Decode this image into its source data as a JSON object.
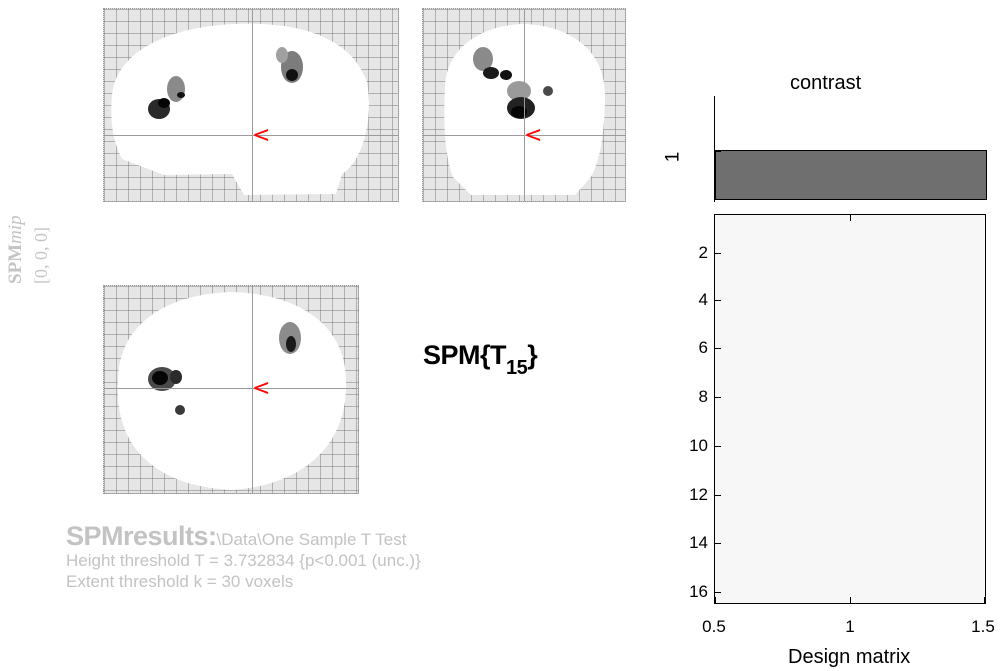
{
  "mip": {
    "label_main": "SPM",
    "label_italic": "mip",
    "coords": "[0, 0, 0]",
    "arrow_glyph": "<",
    "arrow_color": "#ff0000",
    "blob_color": "#111111",
    "grid_color": "#6e6e6e"
  },
  "stat": {
    "prefix": "SPM{T",
    "df": "15",
    "suffix": "}"
  },
  "results": {
    "title": "SPMresults:",
    "path": "\\Data\\One Sample T Test",
    "height_threshold": "Height threshold T = 3.732834  {p<0.001 (unc.)}",
    "extent_threshold": "Extent threshold k = 30 voxels",
    "text_color": "#c3c3c3"
  },
  "contrast": {
    "title": "contrast",
    "row_label": "1",
    "weight": 1,
    "bar_color": "#6f6f6f"
  },
  "design_matrix": {
    "xlabel": "Design matrix",
    "y_ticks": [
      "2",
      "4",
      "6",
      "8",
      "10",
      "12",
      "14",
      "16"
    ],
    "x_ticks": [
      "0.5",
      "1",
      "1.5"
    ],
    "rows": 16,
    "columns": 1,
    "fill_color": "#f7f7f7"
  }
}
